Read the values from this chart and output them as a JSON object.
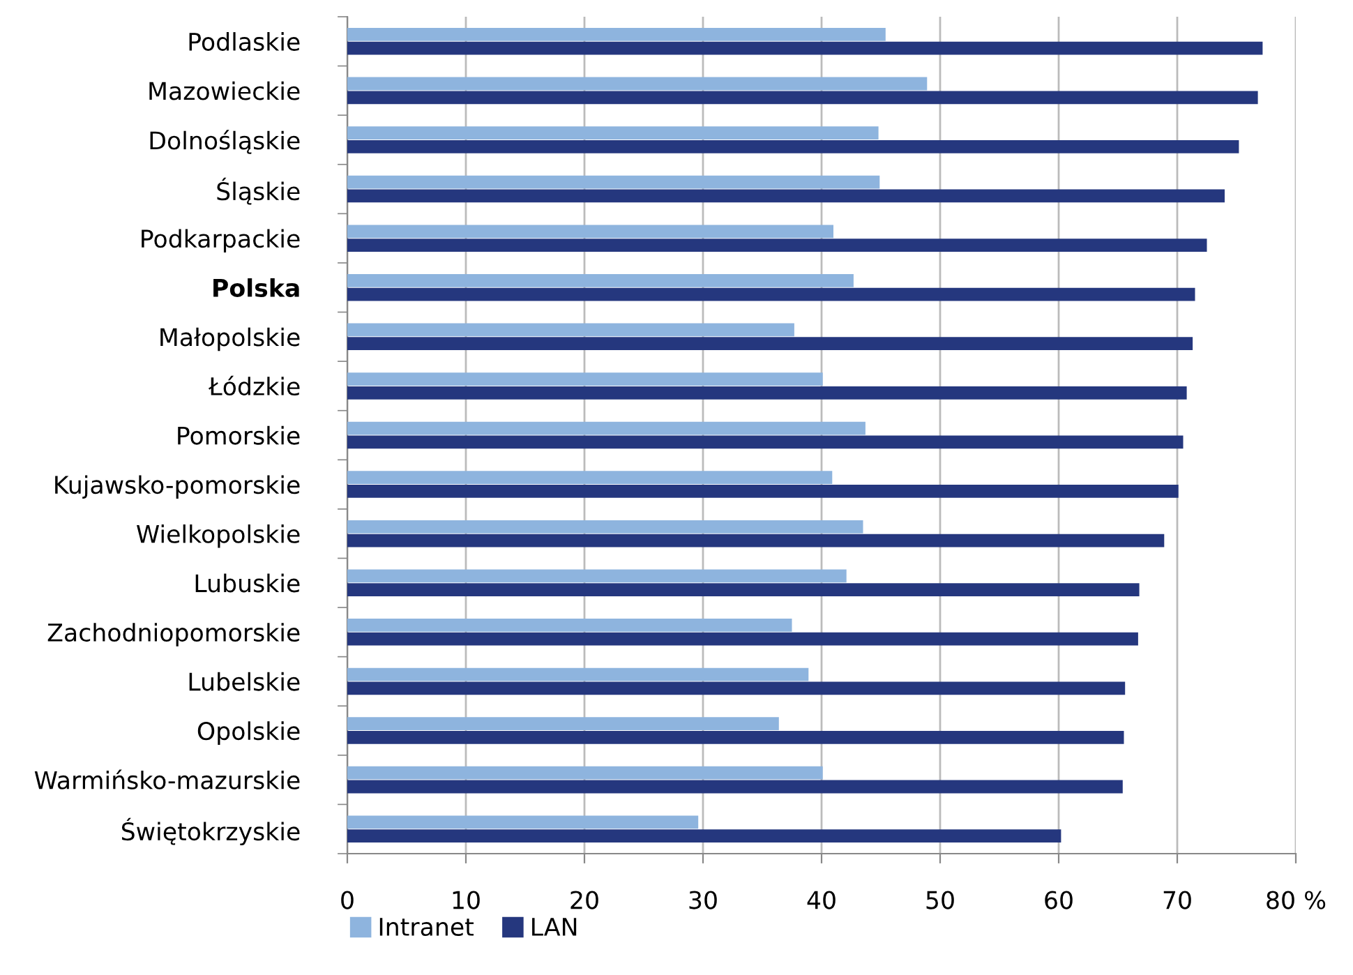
{
  "chart_data": {
    "type": "bar",
    "orientation": "horizontal",
    "categories": [
      "Podlaskie",
      "Mazowieckie",
      "Dolnośląskie",
      "Śląskie",
      "Podkarpackie",
      "Polska",
      "Małopolskie",
      "Łódzkie",
      "Pomorskie",
      "Kujawsko-pomorskie",
      "Wielkopolskie",
      "Lubuskie",
      "Zachodniopomorskie",
      "Lubelskie",
      "Opolskie",
      "Warmińsko-mazurskie",
      "Świętokrzyskie"
    ],
    "series": [
      {
        "name": "Intranet",
        "color": "#8eb4de",
        "values": [
          45.4,
          48.9,
          44.8,
          44.9,
          41.0,
          42.7,
          37.7,
          40.1,
          43.7,
          40.9,
          43.5,
          42.1,
          37.5,
          38.9,
          36.4,
          40.1,
          29.6
        ]
      },
      {
        "name": "LAN",
        "color": "#25377e",
        "values": [
          77.2,
          76.8,
          75.2,
          74.0,
          72.5,
          71.5,
          71.3,
          70.8,
          70.5,
          70.1,
          68.9,
          66.8,
          66.7,
          65.6,
          65.5,
          65.4,
          60.2
        ]
      }
    ],
    "xlim": [
      0,
      80
    ],
    "xticks": [
      0,
      10,
      20,
      30,
      40,
      50,
      60,
      70,
      {
        "value": 80,
        "label": "80 %"
      }
    ],
    "grid": "x",
    "legend": "bottom left"
  }
}
